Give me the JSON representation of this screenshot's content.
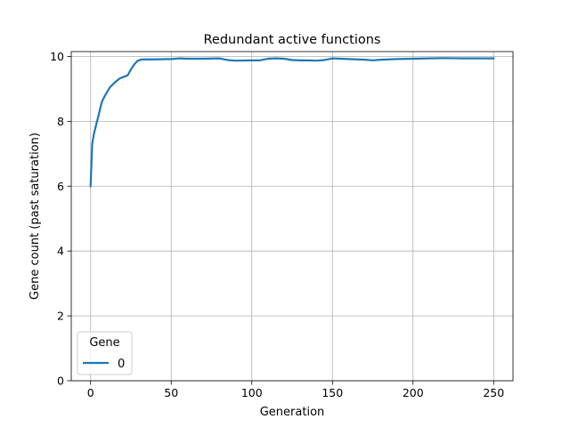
{
  "chart_data": {
    "type": "line",
    "title": "Redundant active functions",
    "xlabel": "Generation",
    "ylabel": "Gene count (past saturation)",
    "xlim": [
      -12,
      262
    ],
    "ylim": [
      0,
      10.15
    ],
    "xticks": [
      0,
      50,
      100,
      150,
      200,
      250
    ],
    "xtick_labels": [
      "0",
      "50",
      "100",
      "150",
      "200",
      "250"
    ],
    "yticks": [
      0,
      2,
      4,
      6,
      8,
      10
    ],
    "ytick_labels": [
      "0",
      "2",
      "4",
      "6",
      "8",
      "10"
    ],
    "grid": true,
    "legend": {
      "title": "Gene",
      "location": "lower left"
    },
    "series": [
      {
        "name": "0",
        "color": "#1f77b4",
        "x": [
          0,
          1,
          2,
          3,
          5,
          7,
          9,
          12,
          15,
          18,
          20,
          23,
          25,
          27,
          29,
          31,
          33,
          40,
          50,
          55,
          60,
          70,
          80,
          85,
          90,
          100,
          105,
          110,
          115,
          120,
          125,
          130,
          135,
          140,
          145,
          150,
          160,
          170,
          175,
          180,
          190,
          200,
          210,
          220,
          230,
          240,
          250
        ],
        "values": [
          6.0,
          7.3,
          7.6,
          7.8,
          8.2,
          8.6,
          8.8,
          9.05,
          9.2,
          9.32,
          9.36,
          9.42,
          9.6,
          9.75,
          9.86,
          9.9,
          9.91,
          9.91,
          9.92,
          9.94,
          9.93,
          9.93,
          9.94,
          9.89,
          9.87,
          9.88,
          9.88,
          9.93,
          9.94,
          9.93,
          9.89,
          9.88,
          9.88,
          9.87,
          9.89,
          9.94,
          9.92,
          9.9,
          9.88,
          9.9,
          9.92,
          9.93,
          9.94,
          9.95,
          9.94,
          9.94,
          9.94
        ]
      }
    ]
  }
}
